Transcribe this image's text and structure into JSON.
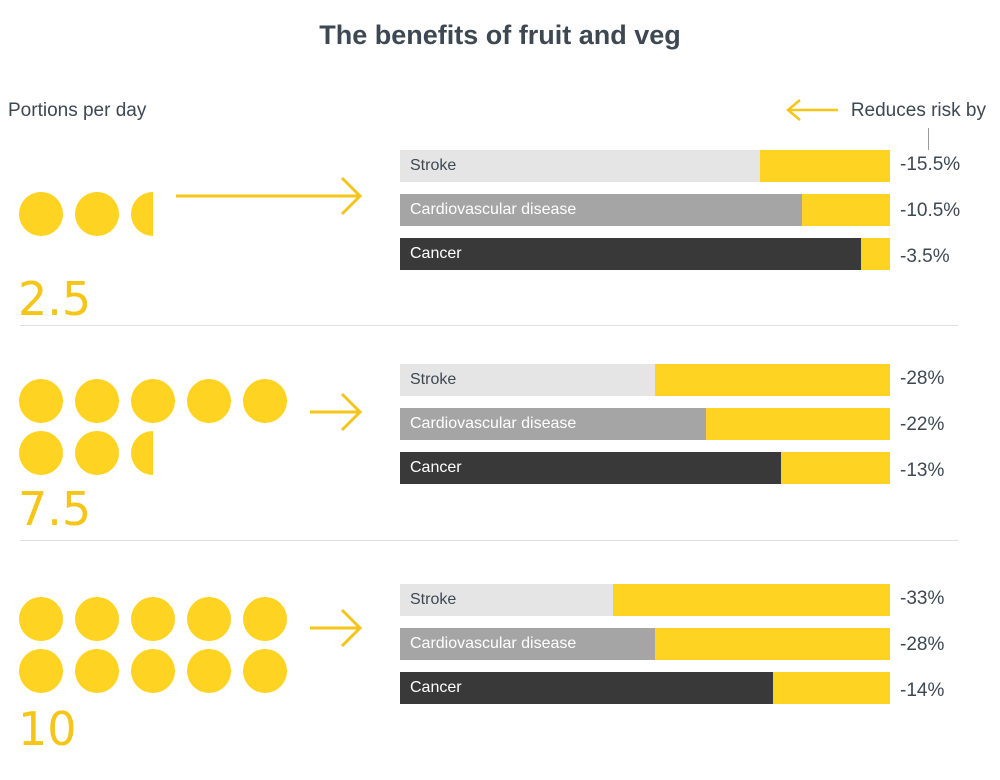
{
  "chart_data": {
    "type": "bar",
    "title": "The benefits of fruit and veg",
    "left_header": "Portions per day",
    "right_header": "Reduces risk by",
    "colors": {
      "accent": "#fed321",
      "stroke": "#e5e5e5",
      "cardiovascular": "#a5a5a5",
      "cancer": "#393939"
    },
    "groups": [
      {
        "portions_label": "2.5",
        "portions": 2.5,
        "bars": [
          {
            "category": "Stroke",
            "value": -15.5,
            "label": "-15.5%"
          },
          {
            "category": "Cardiovascular disease",
            "value": -10.5,
            "label": "-10.5%"
          },
          {
            "category": "Cancer",
            "value": -3.5,
            "label": "-3.5%"
          }
        ]
      },
      {
        "portions_label": "7.5",
        "portions": 7.5,
        "bars": [
          {
            "category": "Stroke",
            "value": -28,
            "label": "-28%"
          },
          {
            "category": "Cardiovascular disease",
            "value": -22,
            "label": "-22%"
          },
          {
            "category": "Cancer",
            "value": -13,
            "label": "-13%"
          }
        ]
      },
      {
        "portions_label": "10",
        "portions": 10,
        "bars": [
          {
            "category": "Stroke",
            "value": -33,
            "label": "-33%"
          },
          {
            "category": "Cardiovascular disease",
            "value": -28,
            "label": "-28%"
          },
          {
            "category": "Cancer",
            "value": -14,
            "label": "-14%"
          }
        ]
      }
    ]
  }
}
